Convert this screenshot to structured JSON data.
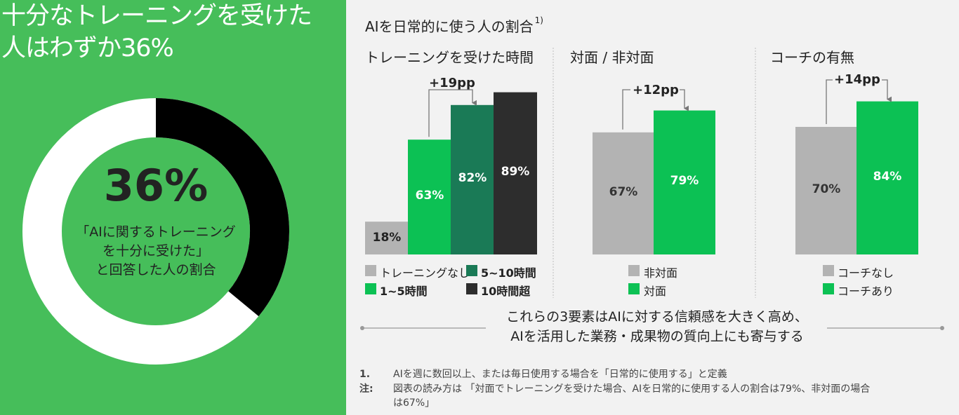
{
  "left_panel": {
    "title_line1": "十分なトレーニングを受けた",
    "title_line2": "人はわずか36%",
    "donut_value": 36,
    "donut_big": "36%",
    "donut_caption_line1": "「AIに関するトレーニング",
    "donut_caption_line2": "を十分に受けた」",
    "donut_caption_line3": "と回答した人の割合"
  },
  "main_title": "AIを日常的に使う人の割合",
  "main_title_sup": "1)",
  "colors": {
    "green_bg": "#46be5a",
    "bright_green": "#0cc154",
    "dark_green": "#1a7a56",
    "charcoal": "#2d2d2d",
    "gray": "#b3b3b3",
    "black": "#000000",
    "white": "#ffffff"
  },
  "chart_data": [
    {
      "type": "bar",
      "title": "トレーニングを受けた時間",
      "categories": [
        "トレーニングなし",
        "1~5時間",
        "5~10時間",
        "10時間超"
      ],
      "values": [
        18,
        63,
        82,
        89
      ],
      "labels": [
        "18%",
        "63%",
        "82%",
        "89%"
      ],
      "annotation": "+19pp",
      "legend": [
        "トレーニングなし",
        "5~10時間",
        "1~5時間",
        "10時間超"
      ]
    },
    {
      "type": "bar",
      "title": "対面 / 非対面",
      "categories": [
        "非対面",
        "対面"
      ],
      "values": [
        67,
        79
      ],
      "labels": [
        "67%",
        "79%"
      ],
      "annotation": "+12pp",
      "legend": [
        "非対面",
        "対面"
      ]
    },
    {
      "type": "bar",
      "title": "コーチの有無",
      "categories": [
        "コーチなし",
        "コーチあり"
      ],
      "values": [
        70,
        84
      ],
      "labels": [
        "70%",
        "84%"
      ],
      "annotation": "+14pp",
      "legend": [
        "コーチなし",
        "コーチあり"
      ]
    }
  ],
  "conclusion_line1": "これらの3要素はAIに対する信頼感を大きく高め、",
  "conclusion_line2": "AIを活用した業務・成果物の質向上にも寄与する",
  "notes": {
    "num1": "1.",
    "text1": "AIを週に数回以上、または毎日使用する場合を「日常的に使用する」と定義",
    "label2": "注:",
    "text2_line1": "図表の読み方は 「対面でトレーニングを受けた場合、AIを日常的に使用する人の割合は79%、非対面の場合",
    "text2_line2": "は67%」"
  }
}
